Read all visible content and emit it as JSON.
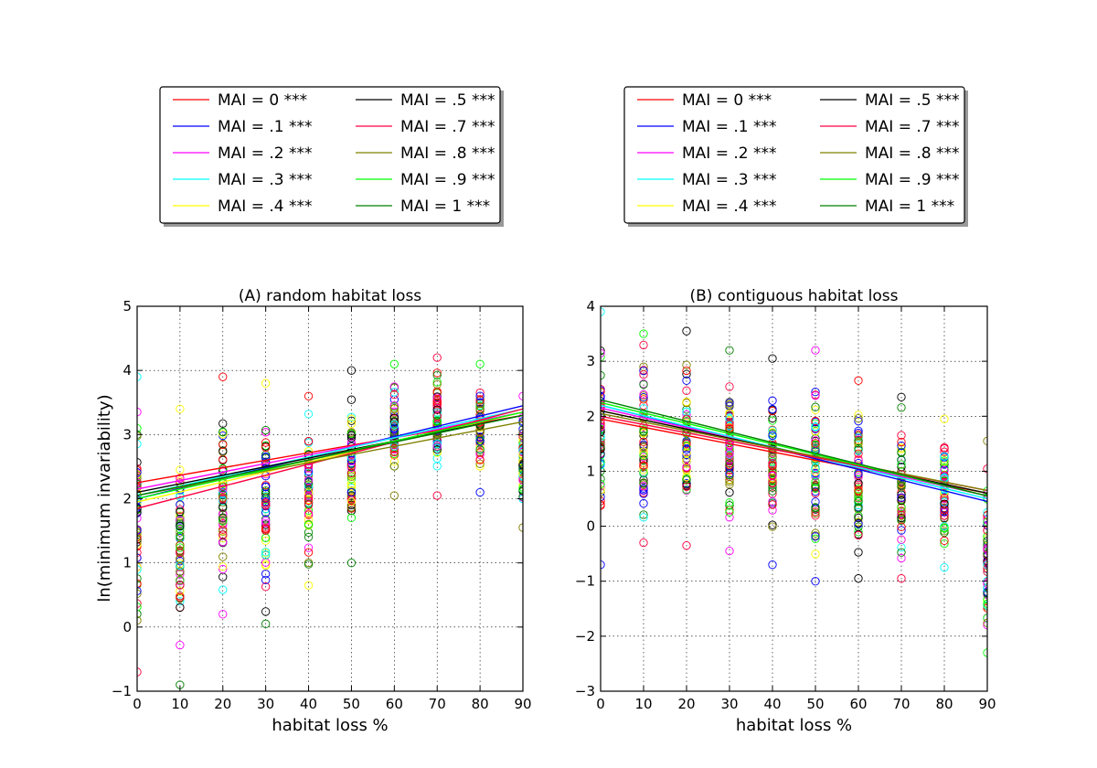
{
  "figure": {
    "ylabel": "ln(minimum invariability)"
  },
  "legend_entries": [
    {
      "label": "MAI = 0 ***",
      "color": "#ff0000"
    },
    {
      "label": "MAI = .1 ***",
      "color": "#0000ff"
    },
    {
      "label": "MAI = .2 ***",
      "color": "#ff00ff"
    },
    {
      "label": "MAI = .3 ***",
      "color": "#00ffff"
    },
    {
      "label": "MAI = .4 ***",
      "color": "#ffff00"
    },
    {
      "label": "MAI = .5 ***",
      "color": "#000000"
    },
    {
      "label": "MAI = .7 ***",
      "color": "#ff0040"
    },
    {
      "label": "MAI = .8 ***",
      "color": "#808000"
    },
    {
      "label": "MAI = .9 ***",
      "color": "#00ff00"
    },
    {
      "label": "MAI = 1 ***",
      "color": "#008000"
    }
  ],
  "chart_data": [
    {
      "type": "scatter",
      "title": "(A) random habitat loss",
      "xlabel": "habitat loss %",
      "ylabel": "ln(minimum invariability)",
      "xlim": [
        0,
        90
      ],
      "ylim": [
        -1,
        5
      ],
      "xticks": [
        "0",
        "10",
        "20",
        "30",
        "40",
        "50",
        "60",
        "70",
        "80",
        "90"
      ],
      "yticks": [
        "−1",
        "0",
        "1",
        "2",
        "3",
        "4",
        "5"
      ],
      "grid": true,
      "x_values": [
        0,
        10,
        20,
        30,
        40,
        50,
        60,
        70,
        80,
        90
      ],
      "point_ranges": [
        {
          "x": 0,
          "min": -0.7,
          "max": 3.9
        },
        {
          "x": 10,
          "min": -0.9,
          "max": 3.4
        },
        {
          "x": 20,
          "min": 0.2,
          "max": 3.9
        },
        {
          "x": 30,
          "min": 0.05,
          "max": 3.8
        },
        {
          "x": 40,
          "min": 0.65,
          "max": 3.6
        },
        {
          "x": 50,
          "min": 1.0,
          "max": 4.0
        },
        {
          "x": 60,
          "min": 2.05,
          "max": 4.1
        },
        {
          "x": 70,
          "min": 2.05,
          "max": 4.2
        },
        {
          "x": 80,
          "min": 2.1,
          "max": 4.1
        },
        {
          "x": 90,
          "min": 1.55,
          "max": 3.6
        }
      ],
      "series": [
        {
          "name": "MAI = 0 ***",
          "fit": [
            2.25,
            3.3
          ]
        },
        {
          "name": "MAI = .1 ***",
          "fit": [
            2.0,
            3.45
          ]
        },
        {
          "name": "MAI = .2 ***",
          "fit": [
            2.15,
            3.35
          ]
        },
        {
          "name": "MAI = .3 ***",
          "fit": [
            2.05,
            3.4
          ]
        },
        {
          "name": "MAI = .4 ***",
          "fit": [
            1.95,
            3.35
          ]
        },
        {
          "name": "MAI = .5 ***",
          "fit": [
            2.1,
            3.3
          ]
        },
        {
          "name": "MAI = .7 ***",
          "fit": [
            1.85,
            3.4
          ]
        },
        {
          "name": "MAI = .8 ***",
          "fit": [
            2.05,
            3.2
          ]
        },
        {
          "name": "MAI = .9 ***",
          "fit": [
            2.0,
            3.35
          ]
        },
        {
          "name": "MAI = 1 ***",
          "fit": [
            2.05,
            3.3
          ]
        }
      ]
    },
    {
      "type": "scatter",
      "title": "(B) contiguous habitat loss",
      "xlabel": "habitat loss %",
      "ylabel": "",
      "xlim": [
        0,
        90
      ],
      "ylim": [
        -3,
        4
      ],
      "xticks": [
        "0",
        "10",
        "20",
        "30",
        "40",
        "50",
        "60",
        "70",
        "80",
        "90"
      ],
      "yticks": [
        "−3",
        "−2",
        "−1",
        "0",
        "1",
        "2",
        "3",
        "4"
      ],
      "grid": true,
      "x_values": [
        0,
        10,
        20,
        30,
        40,
        50,
        60,
        70,
        80,
        90
      ],
      "point_ranges": [
        {
          "x": 0,
          "min": -0.7,
          "max": 3.9
        },
        {
          "x": 10,
          "min": -0.3,
          "max": 3.5
        },
        {
          "x": 20,
          "min": -0.35,
          "max": 3.55
        },
        {
          "x": 30,
          "min": -0.45,
          "max": 3.2
        },
        {
          "x": 40,
          "min": -0.7,
          "max": 3.05
        },
        {
          "x": 50,
          "min": -1.0,
          "max": 3.2
        },
        {
          "x": 60,
          "min": -0.95,
          "max": 2.65
        },
        {
          "x": 70,
          "min": -0.95,
          "max": 2.35
        },
        {
          "x": 80,
          "min": -0.75,
          "max": 1.95
        },
        {
          "x": 90,
          "min": -2.3,
          "max": 1.55
        }
      ],
      "series": [
        {
          "name": "MAI = 0 ***",
          "fit": [
            1.95,
            0.6
          ]
        },
        {
          "name": "MAI = .1 ***",
          "fit": [
            2.2,
            0.45
          ]
        },
        {
          "name": "MAI = .2 ***",
          "fit": [
            2.15,
            0.55
          ]
        },
        {
          "name": "MAI = .3 ***",
          "fit": [
            2.2,
            0.5
          ]
        },
        {
          "name": "MAI = .4 ***",
          "fit": [
            2.1,
            0.6
          ]
        },
        {
          "name": "MAI = .5 ***",
          "fit": [
            2.1,
            0.6
          ]
        },
        {
          "name": "MAI = .7 ***",
          "fit": [
            2.0,
            0.65
          ]
        },
        {
          "name": "MAI = .8 ***",
          "fit": [
            2.05,
            0.65
          ]
        },
        {
          "name": "MAI = .9 ***",
          "fit": [
            2.25,
            0.55
          ]
        },
        {
          "name": "MAI = 1 ***",
          "fit": [
            2.3,
            0.55
          ]
        }
      ]
    }
  ]
}
